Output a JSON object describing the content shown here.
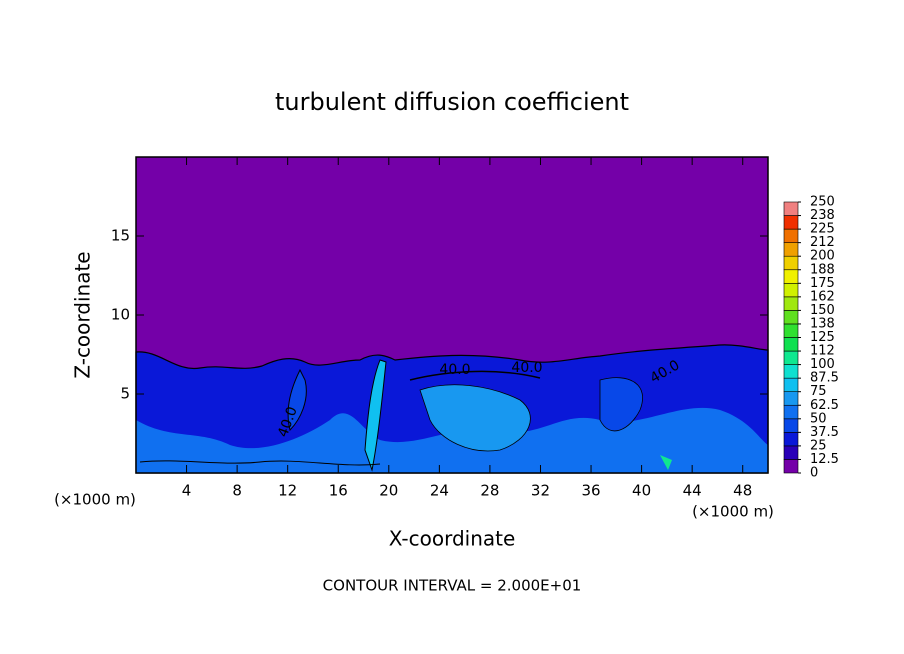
{
  "chart_data": {
    "type": "contour",
    "title": "turbulent diffusion coefficient",
    "xlabel": "X-coordinate",
    "ylabel": "Z-coordinate",
    "xunit": "(×1000 m)",
    "xlim": [
      0,
      50
    ],
    "xticks": [
      4,
      8,
      12,
      16,
      20,
      24,
      28,
      32,
      36,
      40,
      44,
      48
    ],
    "ylim": [
      0,
      20
    ],
    "yticks": [
      5,
      10,
      15
    ],
    "colorbar_ticks": [
      0,
      12.5,
      25,
      37.5,
      50,
      62.5,
      75,
      87.5,
      100,
      {
        "value": 112.5,
        "label": "112"
      },
      125,
      {
        "value": 137.5,
        "label": "138"
      },
      150,
      {
        "value": 162.5,
        "label": "162"
      },
      175,
      {
        "value": 187.5,
        "label": "188"
      },
      200,
      {
        "value": 212.5,
        "label": "212"
      },
      225,
      {
        "value": 237.5,
        "label": "238"
      },
      250
    ],
    "colorbar_colors": [
      "#7400a8",
      "#2a00b8",
      "#0a18d8",
      "#0848e8",
      "#1070f0",
      "#1898f0",
      "#10c0f0",
      "#10e0d0",
      "#10e890",
      "#10e050",
      "#30e030",
      "#60e020",
      "#a0e810",
      "#d0f000",
      "#f0f000",
      "#f0d000",
      "#f0a000",
      "#f07000",
      "#f03000",
      "#f08080"
    ],
    "contour_labels": [
      {
        "value": 40,
        "label": "40.0"
      },
      {
        "value": 40,
        "label": "40.0"
      },
      {
        "value": 40,
        "label": "40.0"
      },
      {
        "value": 40,
        "label": "40.0"
      }
    ],
    "footnote": "CONTOUR INTERVAL = 2.000E+01"
  }
}
